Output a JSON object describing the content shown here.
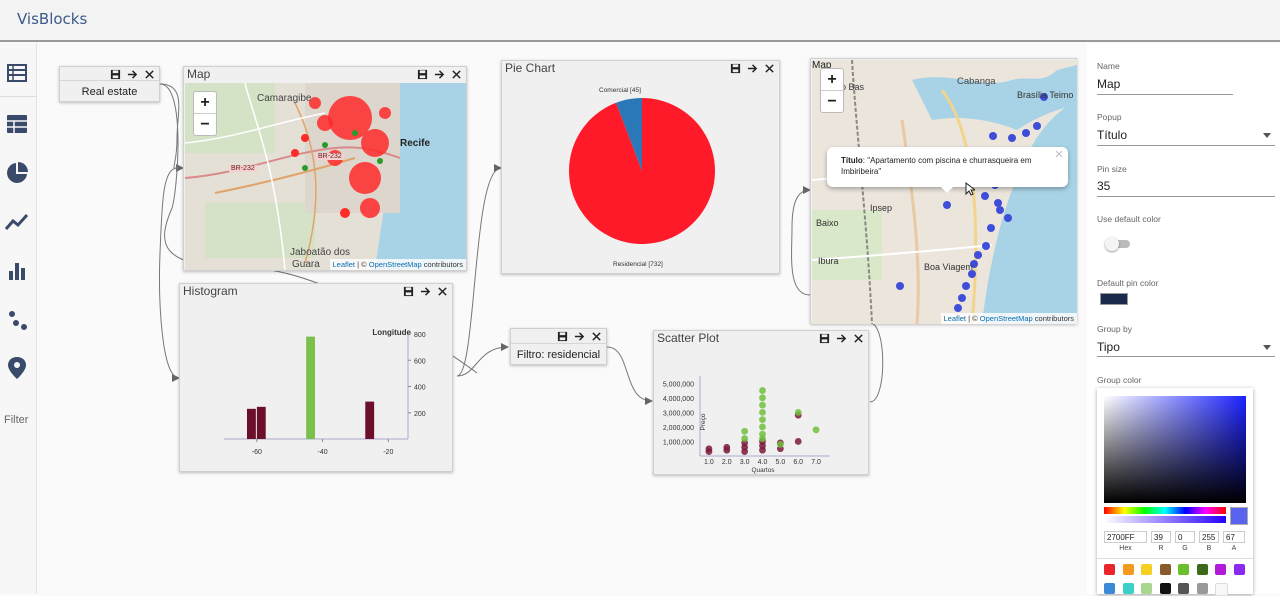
{
  "app": {
    "title": "VisBlocks"
  },
  "sidebar": {
    "items": [
      "table-view-icon",
      "table-icon",
      "pie-chart-icon",
      "line-chart-icon",
      "bar-chart-icon",
      "scatter-icon",
      "map-pin-icon"
    ],
    "filter_label": "Filter"
  },
  "nodes": {
    "data_source": {
      "label": "Real estate"
    },
    "map1": {
      "title": "Map",
      "labels": {
        "camaragibe": "Camaragibe",
        "recife": "Recife",
        "br232a": "BR-232",
        "br232b": "BR-232",
        "jaboatao": "Jaboatão dos",
        "guara": "Guara"
      }
    },
    "pie": {
      "title": "Pie Chart"
    },
    "histogram": {
      "title": "Histogram"
    },
    "filter": {
      "label": "Filtro: residencial"
    },
    "scatter": {
      "title": "Scatter Plot"
    },
    "map2": {
      "title": "Map",
      "popup_key": "Título",
      "popup_value": ": \"Apartamento com piscina e churrasqueira em Imbiribeira\"",
      "labels": {
        "cabanga": "Cabanga",
        "brasilia": "Brasília Teimo",
        "ipsep": "Ipsep",
        "baixo": "Baixo",
        "ibura": "Ibura",
        "boa_viagem": "Boa Viagem",
        "map_a": "Map",
        "ao_bas": "ão Bas"
      }
    },
    "attribution": {
      "leaflet": "Leaflet",
      "sep": " | © ",
      "osm": "OpenStreetMap",
      "tail": " contributors"
    }
  },
  "chart_data": [
    {
      "type": "pie",
      "categories": [
        "Comercial",
        "Residencial"
      ],
      "values": [
        45,
        732
      ],
      "labels": [
        "Comercial [45]",
        "Residencial [732]"
      ],
      "colors": [
        "#2a78b8",
        "#ff1a2a"
      ]
    },
    {
      "type": "bar",
      "xlabel": "Longitude",
      "x_ticks": [
        -60,
        -40,
        -20
      ],
      "y_ticks": [
        200,
        400,
        600,
        800
      ],
      "ylim": [
        0,
        800
      ],
      "bars": [
        {
          "x0": -63,
          "x1": -60,
          "value": 230,
          "color": "#6b0f2b"
        },
        {
          "x0": -60,
          "x1": -57,
          "value": 245,
          "color": "#6b0f2b"
        },
        {
          "x0": -45,
          "x1": -42,
          "value": 780,
          "color": "#7ac04a"
        },
        {
          "x0": -27,
          "x1": -24,
          "value": 285,
          "color": "#6b0f2b"
        }
      ]
    },
    {
      "type": "scatter",
      "xlabel": "Quartos",
      "ylabel": "Preço",
      "x_ticks": [
        "1.0",
        "2.0",
        "3.0",
        "4.0",
        "5.0",
        "6.0",
        "7.0"
      ],
      "y_ticks": [
        "1,000,000",
        "2,000,000",
        "3,000,000",
        "4,000,000",
        "5,000,000"
      ],
      "xlim": [
        0.5,
        7.5
      ],
      "ylim": [
        0,
        5500000
      ],
      "series": [
        {
          "color": "#7a1a3a",
          "points": [
            [
              1,
              500000
            ],
            [
              1,
              300000
            ],
            [
              2,
              600000
            ],
            [
              2,
              400000
            ],
            [
              3,
              900000
            ],
            [
              3,
              600000
            ],
            [
              3,
              300000
            ],
            [
              4,
              1000000
            ],
            [
              4,
              700000
            ],
            [
              4,
              400000
            ],
            [
              5,
              900000
            ],
            [
              5,
              500000
            ],
            [
              6,
              1000000
            ],
            [
              6,
              2800000
            ]
          ]
        },
        {
          "color": "#6ec03c",
          "points": [
            [
              3,
              1700000
            ],
            [
              3,
              1200000
            ],
            [
              4,
              4500000
            ],
            [
              4,
              4000000
            ],
            [
              4,
              3500000
            ],
            [
              4,
              3000000
            ],
            [
              4,
              2500000
            ],
            [
              4,
              2000000
            ],
            [
              4,
              1500000
            ],
            [
              4,
              1200000
            ],
            [
              5,
              800000
            ],
            [
              6,
              3000000
            ],
            [
              7,
              1800000
            ]
          ]
        }
      ]
    }
  ],
  "panel": {
    "name_label": "Name",
    "name_value": "Map",
    "popup_label": "Popup",
    "popup_value": "Título",
    "pin_size_label": "Pin size",
    "pin_size_value": "35",
    "default_color_label": "Use default color",
    "default_pin_label": "Default pin color",
    "default_pin_color": "#1a2a4a",
    "group_by_label": "Group by",
    "group_by_value": "Tipo",
    "group_color_label": "Group color",
    "picker": {
      "hex": "2700FF",
      "r": "39",
      "g": "0",
      "b": "255",
      "a": "67",
      "hex_label": "Hex",
      "r_label": "R",
      "g_label": "G",
      "b_label": "B",
      "a_label": "A"
    },
    "swatches": [
      "#e8262a",
      "#f39a1e",
      "#f5d020",
      "#8b5a2b",
      "#6cbf2c",
      "#3a6a1a",
      "#b01ad8",
      "#8a2af0",
      "#3a8ad8",
      "#3ad0c8",
      "#a8d890",
      "#111111",
      "#555555",
      "#999999",
      "#f8f8f8"
    ]
  }
}
